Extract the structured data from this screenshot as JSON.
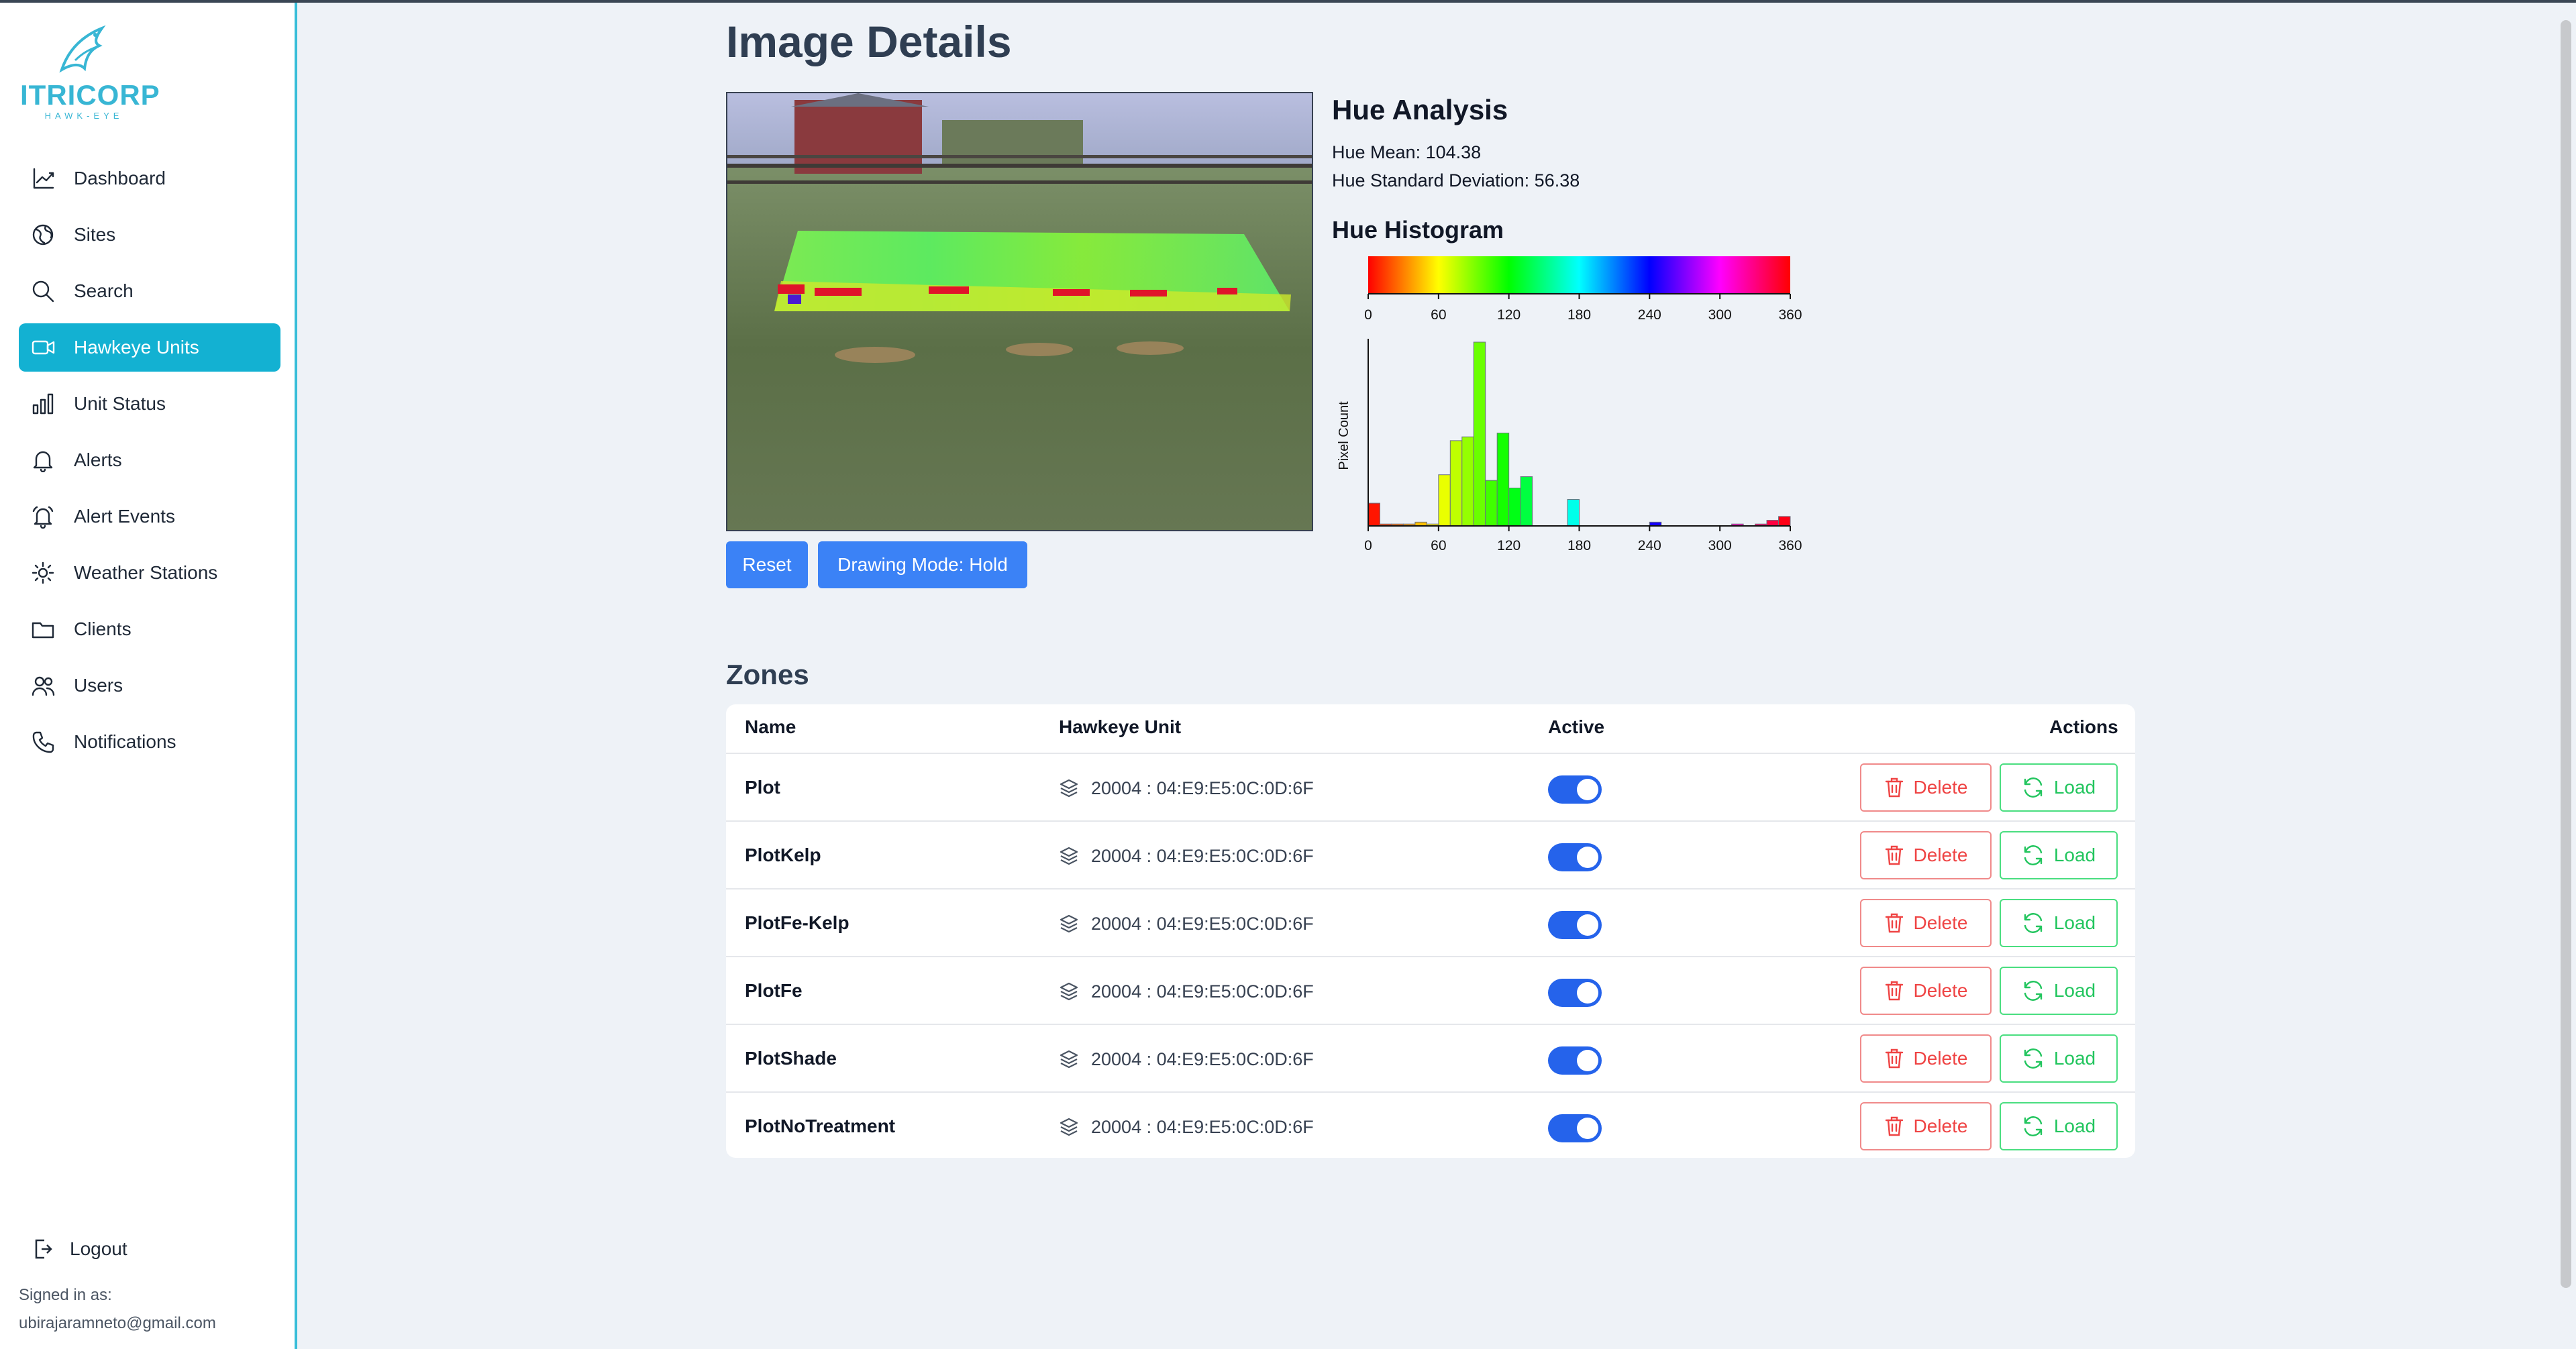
{
  "brand": {
    "name": "ITRICORP",
    "sub": "HAWK-EYE"
  },
  "sidebar": {
    "items": [
      {
        "label": "Dashboard",
        "icon": "dashboard-icon"
      },
      {
        "label": "Sites",
        "icon": "globe-icon"
      },
      {
        "label": "Search",
        "icon": "search-icon"
      },
      {
        "label": "Hawkeye Units",
        "icon": "camera-icon",
        "active": true
      },
      {
        "label": "Unit Status",
        "icon": "bar-chart-icon"
      },
      {
        "label": "Alerts",
        "icon": "bell-icon"
      },
      {
        "label": "Alert Events",
        "icon": "bell-ring-icon"
      },
      {
        "label": "Weather Stations",
        "icon": "sun-icon"
      },
      {
        "label": "Clients",
        "icon": "folder-icon"
      },
      {
        "label": "Users",
        "icon": "users-icon"
      },
      {
        "label": "Notifications",
        "icon": "phone-icon"
      }
    ],
    "logout": "Logout",
    "signed_in_label": "Signed in as:",
    "signed_in_email": "ubirajaramneto@gmail.com"
  },
  "main": {
    "title": "Image Details",
    "buttons": {
      "reset": "Reset",
      "drawing_mode": "Drawing Mode: Hold"
    }
  },
  "hue": {
    "title": "Hue Analysis",
    "mean_text": "Hue Mean: 104.38",
    "std_text": "Hue Standard Deviation: 56.38",
    "histogram_title": "Hue Histogram"
  },
  "chart_data": {
    "type": "bar",
    "title": "Hue Histogram",
    "ylabel": "Pixel Count",
    "xlabel": "",
    "xlim": [
      0,
      360
    ],
    "xticks": [
      0,
      60,
      120,
      180,
      240,
      300,
      360
    ],
    "colorbar": true,
    "bin_width": 10,
    "bins": [
      0,
      10,
      20,
      30,
      40,
      50,
      60,
      70,
      80,
      90,
      100,
      110,
      120,
      130,
      140,
      150,
      160,
      170,
      180,
      190,
      200,
      210,
      220,
      230,
      240,
      250,
      260,
      270,
      280,
      290,
      300,
      310,
      320,
      330,
      340,
      350
    ],
    "values": [
      12,
      1,
      1,
      1,
      2,
      1,
      27,
      45,
      47,
      97,
      24,
      49,
      20,
      26,
      0,
      0,
      0,
      14,
      0,
      0,
      0,
      0,
      0,
      0,
      2,
      0,
      0,
      0,
      0,
      0,
      0,
      1,
      0,
      1,
      3,
      5
    ]
  },
  "zones": {
    "title": "Zones",
    "columns": {
      "name": "Name",
      "unit": "Hawkeye Unit",
      "active": "Active",
      "actions": "Actions"
    },
    "delete_label": "Delete",
    "load_label": "Load",
    "rows": [
      {
        "name": "Plot",
        "unit": "20004 : 04:E9:E5:0C:0D:6F",
        "active": true
      },
      {
        "name": "PlotKelp",
        "unit": "20004 : 04:E9:E5:0C:0D:6F",
        "active": true
      },
      {
        "name": "PlotFe-Kelp",
        "unit": "20004 : 04:E9:E5:0C:0D:6F",
        "active": true
      },
      {
        "name": "PlotFe",
        "unit": "20004 : 04:E9:E5:0C:0D:6F",
        "active": true
      },
      {
        "name": "PlotShade",
        "unit": "20004 : 04:E9:E5:0C:0D:6F",
        "active": true
      },
      {
        "name": "PlotNoTreatment",
        "unit": "20004 : 04:E9:E5:0C:0D:6F",
        "active": true
      }
    ]
  }
}
